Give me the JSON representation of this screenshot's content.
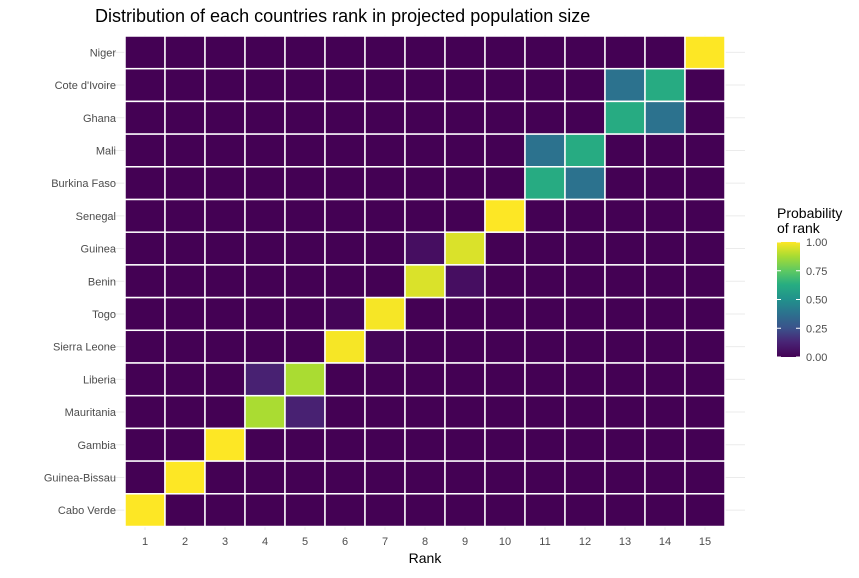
{
  "chart_data": {
    "type": "heatmap",
    "title": "Distribution of each countries rank in projected population size",
    "xlabel": "Rank",
    "ylabel": "",
    "x_categories": [
      "1",
      "2",
      "3",
      "4",
      "5",
      "6",
      "7",
      "8",
      "9",
      "10",
      "11",
      "12",
      "13",
      "14",
      "15"
    ],
    "y_categories": [
      "Niger",
      "Cote d'Ivoire",
      "Ghana",
      "Mali",
      "Burkina Faso",
      "Senegal",
      "Guinea",
      "Benin",
      "Togo",
      "Sierra Leone",
      "Liberia",
      "Mauritania",
      "Gambia",
      "Guinea-Bissau",
      "Cabo Verde"
    ],
    "values": [
      [
        0,
        0,
        0,
        0,
        0,
        0,
        0,
        0,
        0,
        0,
        0,
        0,
        0,
        0,
        1.0
      ],
      [
        0,
        0,
        0,
        0,
        0,
        0,
        0,
        0,
        0,
        0,
        0,
        0,
        0.38,
        0.62,
        0
      ],
      [
        0,
        0,
        0,
        0,
        0,
        0,
        0,
        0,
        0,
        0,
        0,
        0,
        0.62,
        0.38,
        0
      ],
      [
        0,
        0,
        0,
        0,
        0,
        0,
        0,
        0,
        0,
        0,
        0.38,
        0.62,
        0,
        0,
        0
      ],
      [
        0,
        0,
        0,
        0,
        0,
        0,
        0,
        0,
        0,
        0,
        0.62,
        0.38,
        0,
        0,
        0
      ],
      [
        0,
        0,
        0,
        0,
        0,
        0,
        0,
        0,
        0,
        1.0,
        0,
        0,
        0,
        0,
        0
      ],
      [
        0,
        0,
        0,
        0,
        0,
        0,
        0,
        0.05,
        0.95,
        0,
        0,
        0,
        0,
        0,
        0
      ],
      [
        0,
        0,
        0,
        0,
        0,
        0,
        0,
        0.95,
        0.05,
        0,
        0,
        0,
        0,
        0,
        0
      ],
      [
        0,
        0,
        0,
        0,
        0,
        0.01,
        0.99,
        0,
        0,
        0,
        0,
        0,
        0,
        0,
        0
      ],
      [
        0,
        0,
        0,
        0,
        0,
        0.99,
        0.01,
        0,
        0,
        0,
        0,
        0,
        0,
        0,
        0
      ],
      [
        0,
        0,
        0,
        0.12,
        0.88,
        0,
        0,
        0,
        0,
        0,
        0,
        0,
        0,
        0,
        0
      ],
      [
        0,
        0,
        0,
        0.88,
        0.12,
        0,
        0,
        0,
        0,
        0,
        0,
        0,
        0,
        0,
        0
      ],
      [
        0,
        0,
        1.0,
        0,
        0,
        0,
        0,
        0,
        0,
        0,
        0,
        0,
        0,
        0,
        0
      ],
      [
        0,
        1.0,
        0,
        0,
        0,
        0,
        0,
        0,
        0,
        0,
        0,
        0,
        0,
        0,
        0
      ],
      [
        1.0,
        0,
        0,
        0,
        0,
        0,
        0,
        0,
        0,
        0,
        0,
        0,
        0,
        0,
        0
      ]
    ],
    "legend": {
      "title_line1": "Probability",
      "title_line2": "of rank",
      "ticks": [
        "1.00",
        "0.75",
        "0.50",
        "0.25",
        "0.00"
      ],
      "position": "right"
    },
    "color_scale": "viridis",
    "value_range": [
      0,
      1
    ],
    "grid": true
  }
}
